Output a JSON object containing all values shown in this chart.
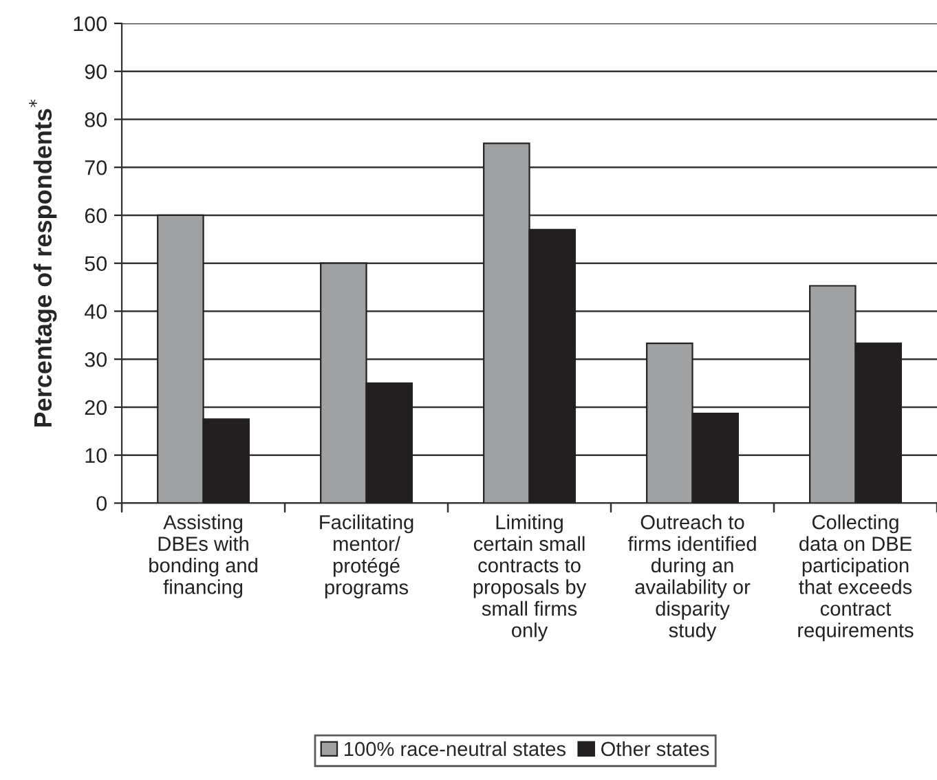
{
  "chart_data": {
    "type": "bar",
    "ylabel": "Percentage of respondents$^{*}$",
    "categories": [
      "Assisting\nDBEs with\nbonding and\nfinancing",
      "Facilitating\nmentor/\nprotégé\nprograms",
      "Limiting\ncertain small\ncontracts to\nproposals by\nsmall firms\nonly",
      "Outreach to\nfirms identified\nduring an\navailability or\ndisparity\nstudy",
      "Collecting\ndata on DBE\nparticipation\nthat exceeds\ncontract\nrequirements"
    ],
    "series": [
      {
        "name": "100% race-neutral states",
        "color": "#a0a1a3",
        "values": [
          60,
          50,
          75,
          33.3,
          45.3
        ]
      },
      {
        "name": "Other states",
        "color": "#231f20",
        "values": [
          17.5,
          25,
          57,
          18.7,
          33.3
        ]
      }
    ],
    "ylim": [
      0,
      100
    ],
    "yticks": [
      0,
      10,
      20,
      30,
      40,
      50,
      60,
      70,
      80,
      90,
      100
    ],
    "grid": "y",
    "legend": "bottom"
  }
}
